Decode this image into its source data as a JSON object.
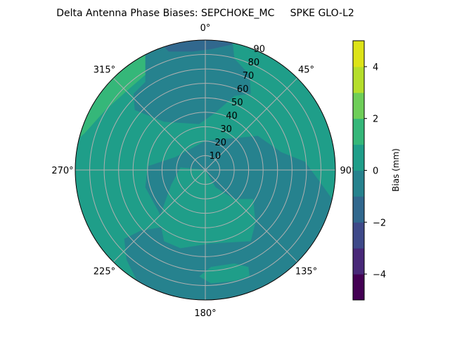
{
  "chart_data": {
    "type": "polar-contour",
    "title": "Delta Antenna Phase Biases: SEPCHOKE_MC     SPKE GLO-L2",
    "theta_direction": "clockwise",
    "theta_zero": "north",
    "theta_ticks": [
      "0°",
      "45°",
      "90°",
      "135°",
      "180°",
      "225°",
      "270°",
      "315°"
    ],
    "theta_tick_values": [
      0,
      45,
      90,
      135,
      180,
      225,
      270,
      315
    ],
    "r_ticks": [
      "10",
      "20",
      "30",
      "40",
      "50",
      "60",
      "70",
      "80",
      "90"
    ],
    "r_tick_values": [
      10,
      20,
      30,
      40,
      50,
      60,
      70,
      80,
      90
    ],
    "rlim": [
      0,
      90
    ],
    "grid": true,
    "colormap": "viridis",
    "levels": [
      -5,
      -4,
      -3,
      -2,
      -1,
      0,
      1,
      2,
      3,
      4,
      5
    ],
    "level_colors": [
      "#440154",
      "#482878",
      "#3e4989",
      "#31688e",
      "#26828e",
      "#1f9e89",
      "#35b779",
      "#6ece58",
      "#b5de2b",
      "#dde318"
    ],
    "colorbar": {
      "label": "Bias (mm)",
      "ticks": [
        "−4",
        "−2",
        "0",
        "2",
        "4"
      ],
      "tick_values": [
        -4,
        -2,
        0,
        2,
        4
      ],
      "range": [
        -5,
        5
      ]
    },
    "regions_description_values": {
      "dominant_range_mm": [
        -1,
        1
      ],
      "max_band_mm": [
        2,
        3
      ],
      "min_band_mm": [
        -2,
        -1
      ]
    }
  }
}
